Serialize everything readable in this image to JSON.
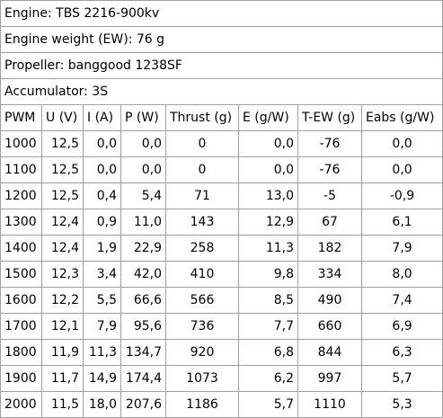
{
  "info": [
    "Engine: TBS 2216-900kv",
    "Engine weight (EW): 76 g",
    "Propeller: banggood 1238SF",
    "Accumulator: 3S"
  ],
  "table": {
    "headers": [
      "PWM",
      "U (V)",
      "I (A)",
      "P (W)",
      "Thrust (g)",
      "E (g/W)",
      "T-EW (g)",
      "Eabs (g/W)"
    ],
    "rows": [
      [
        "1000",
        "12,5",
        "0,0",
        "0,0",
        "0",
        "0,0",
        "-76",
        "0,0"
      ],
      [
        "1100",
        "12,5",
        "0,0",
        "0,0",
        "0",
        "0,0",
        "-76",
        "0,0"
      ],
      [
        "1200",
        "12,5",
        "0,4",
        "5,4",
        "71",
        "13,0",
        "-5",
        "-0,9"
      ],
      [
        "1300",
        "12,4",
        "0,9",
        "11,0",
        "143",
        "12,9",
        "67",
        "6,1"
      ],
      [
        "1400",
        "12,4",
        "1,9",
        "22,9",
        "258",
        "11,3",
        "182",
        "7,9"
      ],
      [
        "1500",
        "12,3",
        "3,4",
        "42,0",
        "410",
        "9,8",
        "334",
        "8,0"
      ],
      [
        "1600",
        "12,2",
        "5,5",
        "66,6",
        "566",
        "8,5",
        "490",
        "7,4"
      ],
      [
        "1700",
        "12,1",
        "7,9",
        "95,6",
        "736",
        "7,7",
        "660",
        "6,9"
      ],
      [
        "1800",
        "11,9",
        "11,3",
        "134,7",
        "920",
        "6,8",
        "844",
        "6,3"
      ],
      [
        "1900",
        "11,7",
        "14,9",
        "174,4",
        "1073",
        "6,2",
        "997",
        "5,7"
      ],
      [
        "2000",
        "11,5",
        "18,0",
        "207,6",
        "1186",
        "5,7",
        "1110",
        "5,3"
      ]
    ]
  }
}
